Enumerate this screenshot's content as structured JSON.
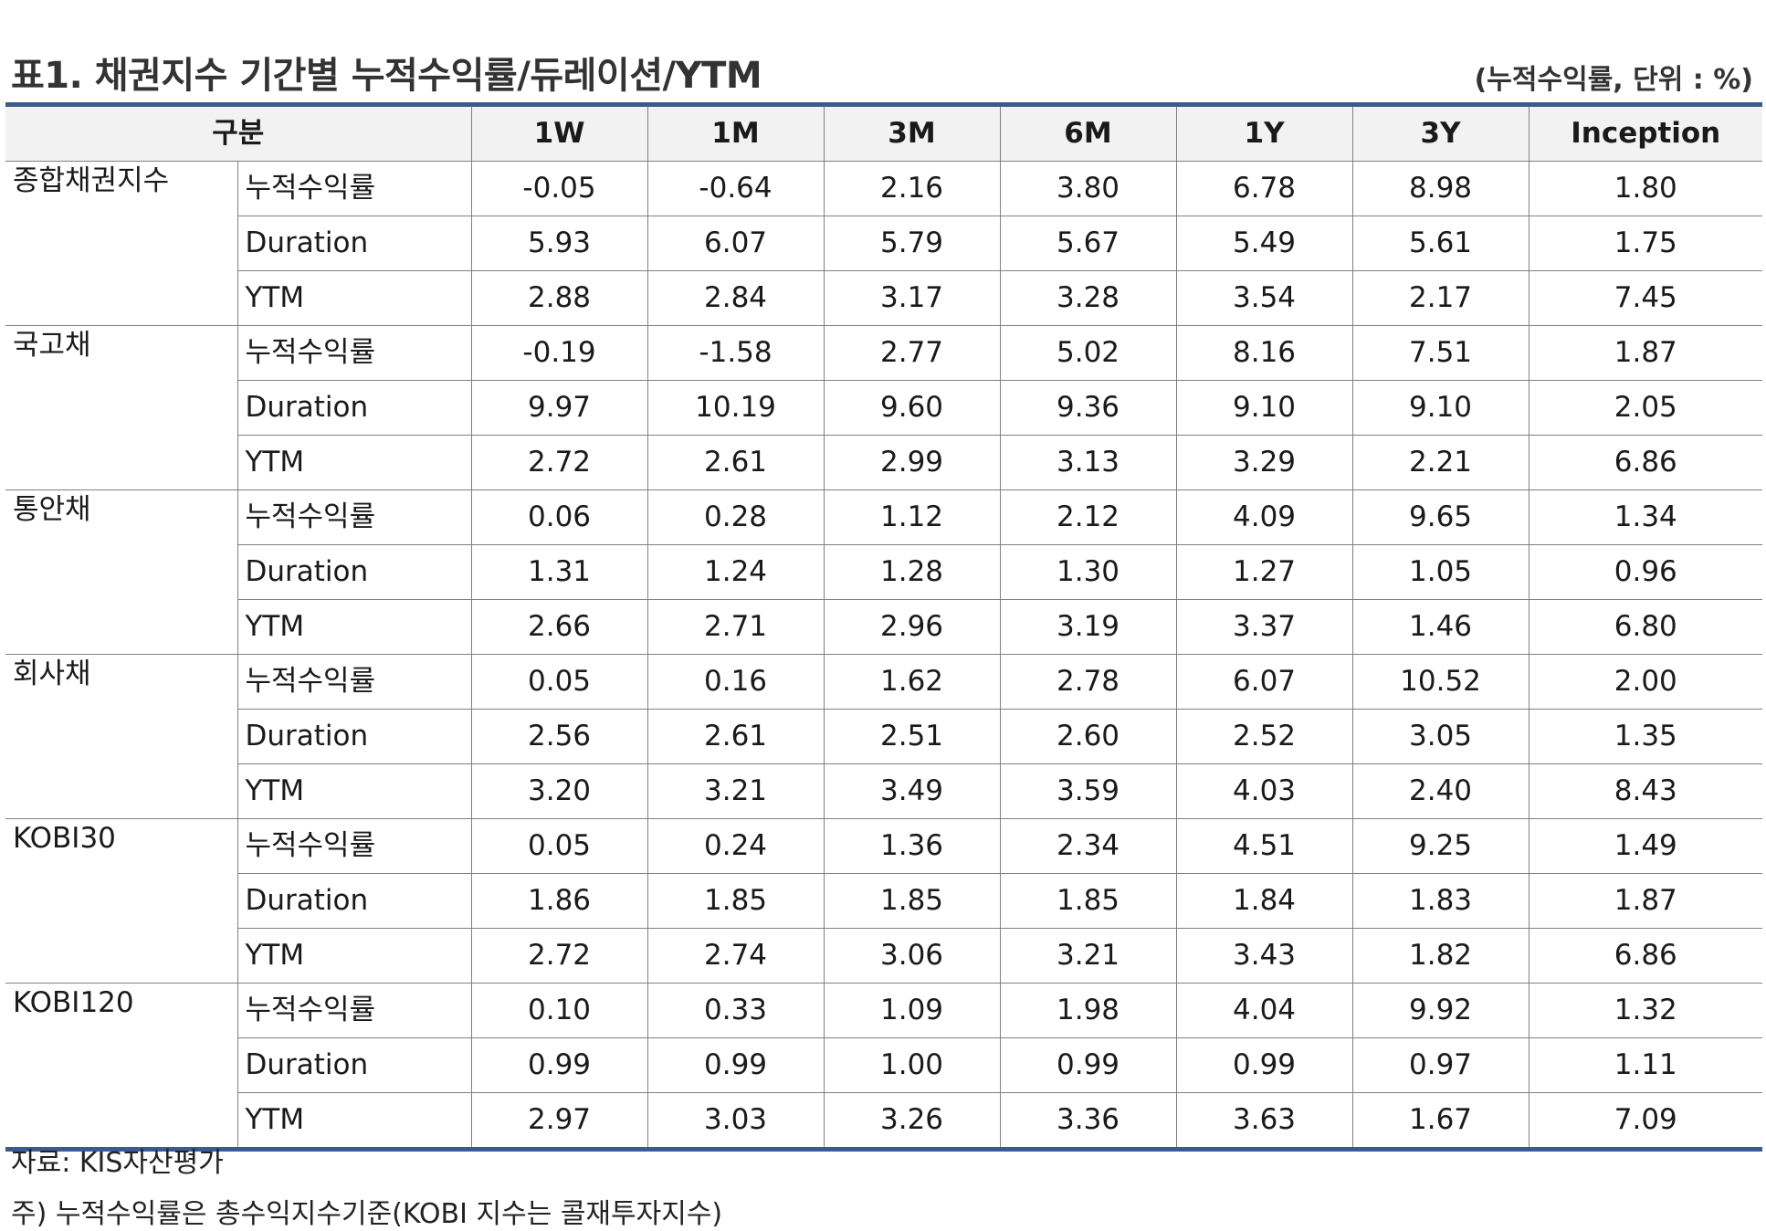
{
  "title": "표1. 채권지수 기간별 누적수익률/듀레이션/YTM",
  "unit_note": "(누적수익률, 단위 : %)",
  "header": {
    "category": "구분",
    "periods": [
      "1W",
      "1M",
      "3M",
      "6M",
      "1Y",
      "3Y",
      "Inception"
    ]
  },
  "groups": [
    {
      "name": "종합채권지수",
      "rows": [
        {
          "metric": "누적수익률",
          "values": [
            "-0.05",
            "-0.64",
            "2.16",
            "3.80",
            "6.78",
            "8.98",
            "1.80"
          ]
        },
        {
          "metric": "Duration",
          "values": [
            "5.93",
            "6.07",
            "5.79",
            "5.67",
            "5.49",
            "5.61",
            "1.75"
          ]
        },
        {
          "metric": "YTM",
          "values": [
            "2.88",
            "2.84",
            "3.17",
            "3.28",
            "3.54",
            "2.17",
            "7.45"
          ]
        }
      ]
    },
    {
      "name": "국고채",
      "rows": [
        {
          "metric": "누적수익률",
          "values": [
            "-0.19",
            "-1.58",
            "2.77",
            "5.02",
            "8.16",
            "7.51",
            "1.87"
          ]
        },
        {
          "metric": "Duration",
          "values": [
            "9.97",
            "10.19",
            "9.60",
            "9.36",
            "9.10",
            "9.10",
            "2.05"
          ]
        },
        {
          "metric": "YTM",
          "values": [
            "2.72",
            "2.61",
            "2.99",
            "3.13",
            "3.29",
            "2.21",
            "6.86"
          ]
        }
      ]
    },
    {
      "name": "통안채",
      "rows": [
        {
          "metric": "누적수익률",
          "values": [
            "0.06",
            "0.28",
            "1.12",
            "2.12",
            "4.09",
            "9.65",
            "1.34"
          ]
        },
        {
          "metric": "Duration",
          "values": [
            "1.31",
            "1.24",
            "1.28",
            "1.30",
            "1.27",
            "1.05",
            "0.96"
          ]
        },
        {
          "metric": "YTM",
          "values": [
            "2.66",
            "2.71",
            "2.96",
            "3.19",
            "3.37",
            "1.46",
            "6.80"
          ]
        }
      ]
    },
    {
      "name": "회사채",
      "rows": [
        {
          "metric": "누적수익률",
          "values": [
            "0.05",
            "0.16",
            "1.62",
            "2.78",
            "6.07",
            "10.52",
            "2.00"
          ]
        },
        {
          "metric": "Duration",
          "values": [
            "2.56",
            "2.61",
            "2.51",
            "2.60",
            "2.52",
            "3.05",
            "1.35"
          ]
        },
        {
          "metric": "YTM",
          "values": [
            "3.20",
            "3.21",
            "3.49",
            "3.59",
            "4.03",
            "2.40",
            "8.43"
          ]
        }
      ]
    },
    {
      "name": "KOBI30",
      "rows": [
        {
          "metric": "누적수익률",
          "values": [
            "0.05",
            "0.24",
            "1.36",
            "2.34",
            "4.51",
            "9.25",
            "1.49"
          ]
        },
        {
          "metric": "Duration",
          "values": [
            "1.86",
            "1.85",
            "1.85",
            "1.85",
            "1.84",
            "1.83",
            "1.87"
          ]
        },
        {
          "metric": "YTM",
          "values": [
            "2.72",
            "2.74",
            "3.06",
            "3.21",
            "3.43",
            "1.82",
            "6.86"
          ]
        }
      ]
    },
    {
      "name": "KOBI120",
      "rows": [
        {
          "metric": "누적수익률",
          "values": [
            "0.10",
            "0.33",
            "1.09",
            "1.98",
            "4.04",
            "9.92",
            "1.32"
          ]
        },
        {
          "metric": "Duration",
          "values": [
            "0.99",
            "0.99",
            "1.00",
            "0.99",
            "0.99",
            "0.97",
            "1.11"
          ]
        },
        {
          "metric": "YTM",
          "values": [
            "2.97",
            "3.03",
            "3.26",
            "3.36",
            "3.63",
            "1.67",
            "7.09"
          ]
        }
      ]
    }
  ],
  "notes": {
    "source": "자료: KIS자산평가",
    "footnote": "주) 누적수익률은 총수익지수기준(KOBI 지수는 콜재투자지수)"
  },
  "colors": {
    "rule": "#3b5b8c",
    "header_bg": "#f2f2f2",
    "grid": "#808080"
  }
}
